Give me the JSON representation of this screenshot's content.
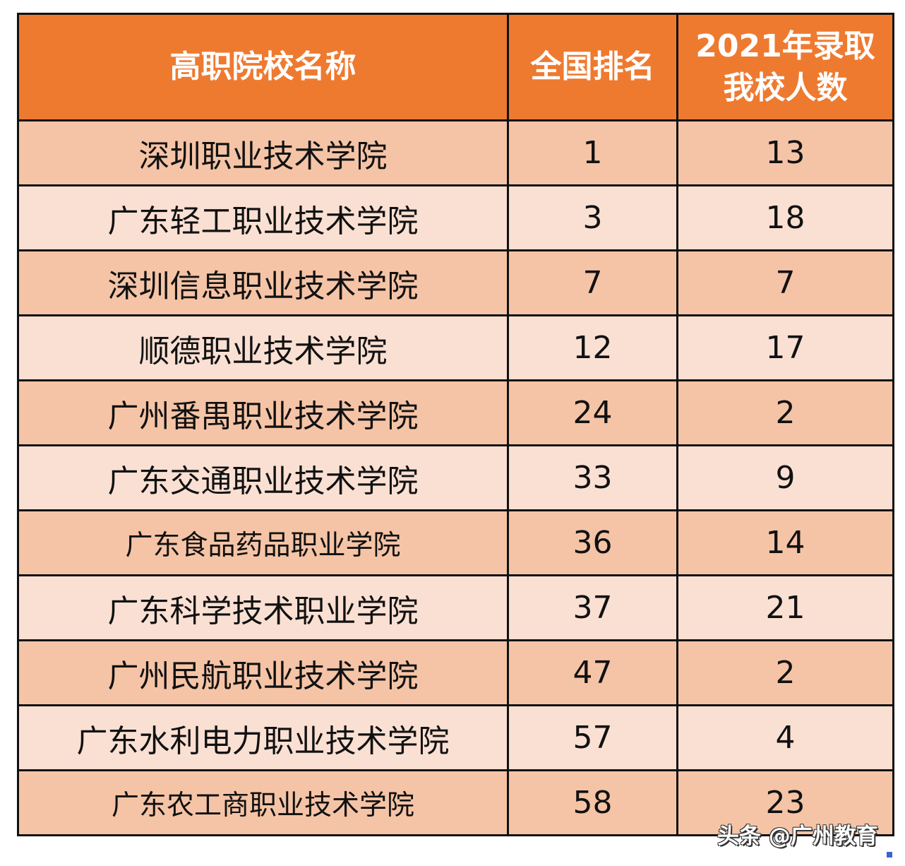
{
  "table": {
    "headers": [
      "高职院校名称",
      "全国排名",
      "2021年录取\n我校人数"
    ],
    "header_lines": {
      "col3_line1": "2021年录取",
      "col3_line2": "我校人数"
    },
    "rows": [
      {
        "name": "深圳职业技术学院",
        "rank": "1",
        "admitted": "13"
      },
      {
        "name": "广东轻工职业技术学院",
        "rank": "3",
        "admitted": "18"
      },
      {
        "name": "深圳信息职业技术学院",
        "rank": "7",
        "admitted": "7"
      },
      {
        "name": "顺德职业技术学院",
        "rank": "12",
        "admitted": "17"
      },
      {
        "name": "广州番禺职业技术学院",
        "rank": "24",
        "admitted": "2"
      },
      {
        "name": "广东交通职业技术学院",
        "rank": "33",
        "admitted": "9"
      },
      {
        "name": "广东食品药品职业学院",
        "rank": "36",
        "admitted": "14"
      },
      {
        "name": "广东科学技术职业学院",
        "rank": "37",
        "admitted": "21"
      },
      {
        "name": "广州民航职业技术学院",
        "rank": "47",
        "admitted": "2"
      },
      {
        "name": "广东水利电力职业技术学院",
        "rank": "57",
        "admitted": "4"
      },
      {
        "name": "广东农工商职业技术学院",
        "rank": "58",
        "admitted": "23"
      }
    ]
  },
  "watermark": "头条 @广州教育",
  "colors": {
    "header_bg": "#ee7a30",
    "row_dark": "#f5c4a6",
    "row_light": "#fae0d3",
    "border": "#111111"
  }
}
